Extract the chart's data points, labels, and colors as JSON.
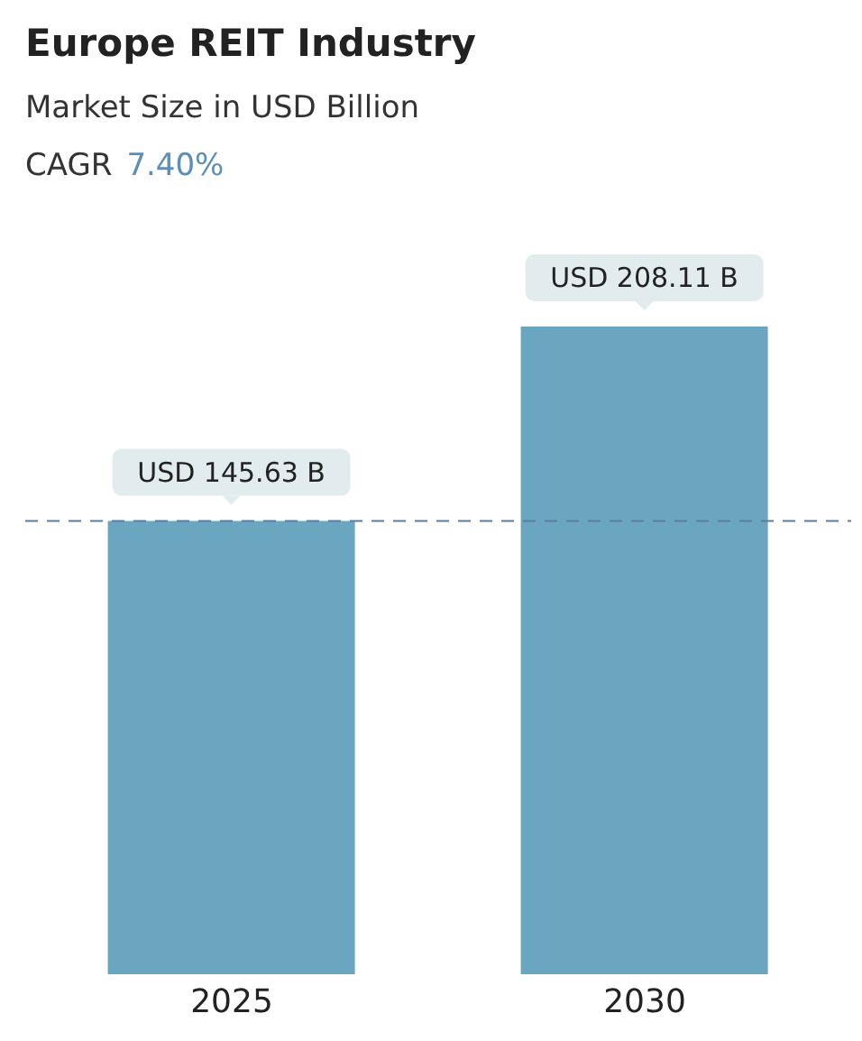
{
  "chart_data": {
    "type": "bar",
    "title": "Europe REIT Industry",
    "subtitle": "Market Size in USD Billion",
    "annotations": [
      "CAGR",
      "7.40%"
    ],
    "categories": [
      "2025",
      "2030"
    ],
    "values": [
      145.63,
      208.11
    ],
    "value_labels": [
      "USD 145.63 B",
      "USD 208.11 B"
    ],
    "color": "#6aa6c0",
    "ref_lines": [
      {
        "axis": "y",
        "value": 145.63,
        "color": "#5a7f9e",
        "line_style": "dashed"
      }
    ],
    "grid": false,
    "legend": false
  }
}
